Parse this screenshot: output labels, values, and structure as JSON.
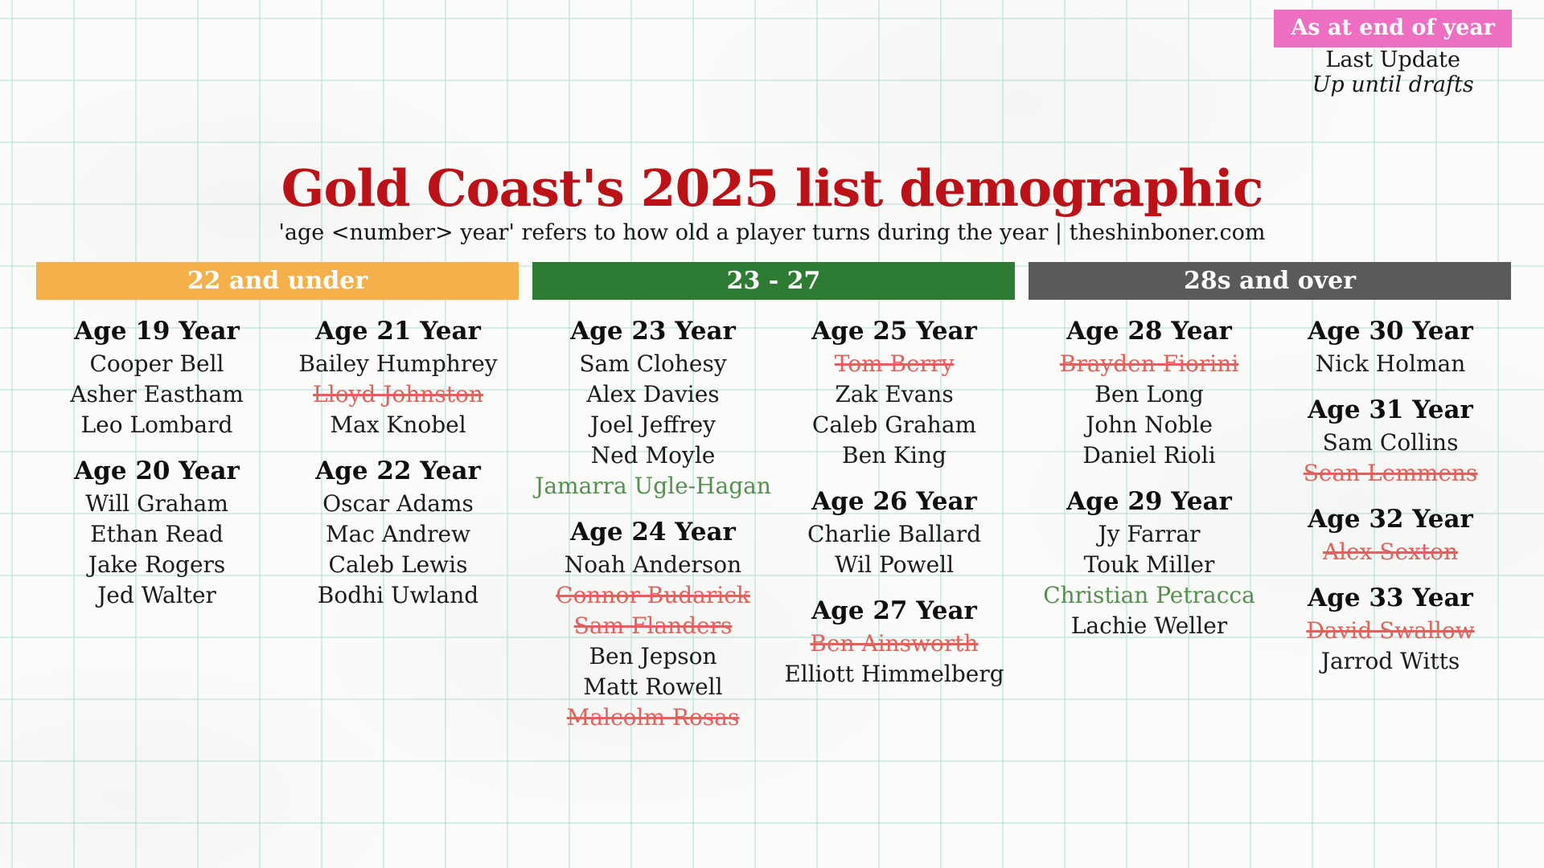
{
  "badge": {
    "label": "As at end of year",
    "bg_color": "#ee6ec2",
    "text_color": "#ffffff"
  },
  "update": {
    "line1": "Last Update",
    "line2": "Up until drafts"
  },
  "title": {
    "text": "Gold Coast's 2025 list demographic",
    "color": "#bb1117"
  },
  "subtitle": "'age <number> year' refers to how old a player turns during the year | theshinboner.com",
  "status_colors": {
    "normal": "#1b1b1b",
    "removed": "#e0625c",
    "incoming": "#54904f"
  },
  "groups": [
    {
      "label": "22 and under",
      "bar_color": "#f6b04b",
      "columns": [
        {
          "sections": [
            {
              "heading": "Age 19 Year",
              "players": [
                {
                  "name": "Cooper Bell",
                  "status": "normal"
                },
                {
                  "name": "Asher Eastham",
                  "status": "normal"
                },
                {
                  "name": "Leo Lombard",
                  "status": "normal"
                }
              ]
            },
            {
              "heading": "Age 20 Year",
              "players": [
                {
                  "name": "Will Graham",
                  "status": "normal"
                },
                {
                  "name": "Ethan Read",
                  "status": "normal"
                },
                {
                  "name": "Jake Rogers",
                  "status": "normal"
                },
                {
                  "name": "Jed Walter",
                  "status": "normal"
                }
              ]
            }
          ]
        },
        {
          "sections": [
            {
              "heading": "Age 21 Year",
              "players": [
                {
                  "name": "Bailey Humphrey",
                  "status": "normal"
                },
                {
                  "name": "Lloyd Johnston",
                  "status": "removed"
                },
                {
                  "name": "Max Knobel",
                  "status": "normal"
                }
              ]
            },
            {
              "heading": "Age 22 Year",
              "players": [
                {
                  "name": "Oscar Adams",
                  "status": "normal"
                },
                {
                  "name": "Mac Andrew",
                  "status": "normal"
                },
                {
                  "name": "Caleb Lewis",
                  "status": "normal"
                },
                {
                  "name": "Bodhi Uwland",
                  "status": "normal"
                }
              ]
            }
          ]
        }
      ]
    },
    {
      "label": "23 - 27",
      "bar_color": "#2e7b33",
      "columns": [
        {
          "sections": [
            {
              "heading": "Age 23 Year",
              "players": [
                {
                  "name": "Sam Clohesy",
                  "status": "normal"
                },
                {
                  "name": "Alex Davies",
                  "status": "normal"
                },
                {
                  "name": "Joel Jeffrey",
                  "status": "normal"
                },
                {
                  "name": "Ned Moyle",
                  "status": "normal"
                },
                {
                  "name": "Jamarra Ugle-Hagan",
                  "status": "incoming"
                }
              ]
            },
            {
              "heading": "Age 24 Year",
              "players": [
                {
                  "name": "Noah Anderson",
                  "status": "normal"
                },
                {
                  "name": "Connor Budarick",
                  "status": "removed"
                },
                {
                  "name": "Sam Flanders",
                  "status": "removed"
                },
                {
                  "name": "Ben Jepson",
                  "status": "normal"
                },
                {
                  "name": "Matt Rowell",
                  "status": "normal"
                },
                {
                  "name": "Malcolm Rosas",
                  "status": "removed"
                }
              ]
            }
          ]
        },
        {
          "sections": [
            {
              "heading": "Age 25 Year",
              "players": [
                {
                  "name": "Tom Berry",
                  "status": "removed"
                },
                {
                  "name": "Zak Evans",
                  "status": "normal"
                },
                {
                  "name": "Caleb Graham",
                  "status": "normal"
                },
                {
                  "name": "Ben King",
                  "status": "normal"
                }
              ]
            },
            {
              "heading": "Age 26 Year",
              "players": [
                {
                  "name": "Charlie Ballard",
                  "status": "normal"
                },
                {
                  "name": "Wil Powell",
                  "status": "normal"
                }
              ]
            },
            {
              "heading": "Age 27 Year",
              "players": [
                {
                  "name": "Ben Ainsworth",
                  "status": "removed"
                },
                {
                  "name": "Elliott Himmelberg",
                  "status": "normal"
                }
              ]
            }
          ]
        }
      ]
    },
    {
      "label": "28s and over",
      "bar_color": "#5a5a5a",
      "columns": [
        {
          "sections": [
            {
              "heading": "Age 28 Year",
              "players": [
                {
                  "name": "Brayden Fiorini",
                  "status": "removed"
                },
                {
                  "name": "Ben Long",
                  "status": "normal"
                },
                {
                  "name": "John Noble",
                  "status": "normal"
                },
                {
                  "name": "Daniel Rioli",
                  "status": "normal"
                }
              ]
            },
            {
              "heading": "Age 29 Year",
              "players": [
                {
                  "name": "Jy Farrar",
                  "status": "normal"
                },
                {
                  "name": "Touk Miller",
                  "status": "normal"
                },
                {
                  "name": "Christian Petracca",
                  "status": "incoming"
                },
                {
                  "name": "Lachie Weller",
                  "status": "normal"
                }
              ]
            }
          ]
        },
        {
          "sections": [
            {
              "heading": "Age 30 Year",
              "players": [
                {
                  "name": "Nick Holman",
                  "status": "normal"
                }
              ]
            },
            {
              "heading": "Age 31 Year",
              "players": [
                {
                  "name": "Sam Collins",
                  "status": "normal"
                },
                {
                  "name": "Sean Lemmens",
                  "status": "removed"
                }
              ]
            },
            {
              "heading": "Age 32 Year",
              "players": [
                {
                  "name": "Alex Sexton",
                  "status": "removed"
                }
              ]
            },
            {
              "heading": "Age 33 Year",
              "players": [
                {
                  "name": "David Swallow",
                  "status": "removed"
                },
                {
                  "name": "Jarrod Witts",
                  "status": "normal"
                }
              ]
            }
          ]
        }
      ]
    }
  ]
}
